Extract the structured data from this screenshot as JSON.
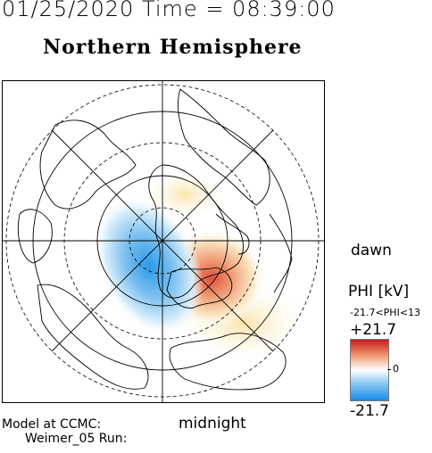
{
  "header": {
    "time": "01/25/2020 Time = 08:39:00"
  },
  "title": "Northern Hemisphere",
  "labels": {
    "dawn": "dawn",
    "midnight": "midnight"
  },
  "model": {
    "line1": "Model at CCMC:",
    "line2": "Weimer_05 Run:"
  },
  "colorbar": {
    "title": "PHI [kV]",
    "range_text": "-21.7<PHI<13",
    "max_label": "+21.7",
    "min_label": "-21.7",
    "zero_label": "0",
    "colors": [
      "#cc1a1a",
      "#f2a27a",
      "#ffffff",
      "#8cc9f2",
      "#1a8ce6"
    ]
  }
}
